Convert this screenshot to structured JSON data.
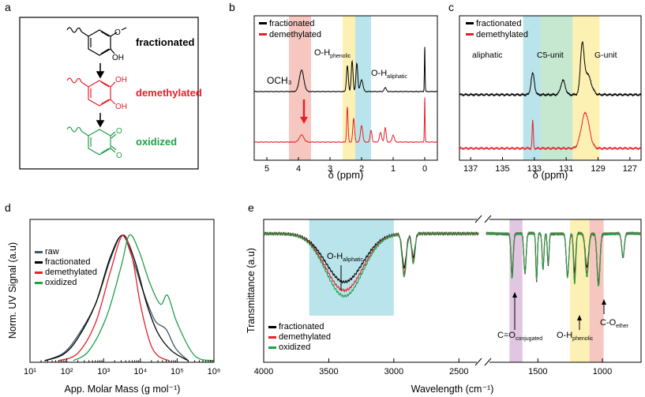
{
  "panels": {
    "a": {
      "letter": "a",
      "labels": {
        "fractionated": "fractionated",
        "demethylated": "demethylated",
        "oxidized": "oxidized"
      },
      "atoms": {
        "methoxy": "O",
        "oh1": "OH",
        "oh2": "OH",
        "oh3": "OH",
        "o1": "O",
        "o2": "O"
      },
      "colors": {
        "fractionated": "#000000",
        "demethylated": "#e8202a",
        "oxidized": "#1fa04a"
      }
    },
    "b": {
      "letter": "b",
      "legend": [
        "fractionated",
        "demethylated"
      ],
      "xlabel": "δ (ppm)",
      "ticks": [
        "5",
        "4",
        "3",
        "2",
        "1",
        "0"
      ],
      "ann_och3": "OCH₃",
      "ann_oh_phen_main": "O-H",
      "ann_oh_phen_sub": "phenolic",
      "ann_oh_ali_main": "O-H",
      "ann_oh_ali_sub": "aliphatic"
    },
    "c": {
      "letter": "c",
      "legend": [
        "fractionated",
        "demethylated"
      ],
      "xlabel": "δ (ppm)",
      "ticks": [
        "137",
        "135",
        "133",
        "131",
        "129",
        "127"
      ],
      "ann_aliphatic": "aliphatic",
      "ann_c5": "C5-unit",
      "ann_g": "G-unit"
    },
    "d": {
      "letter": "d"
    },
    "e": {
      "letter": "e",
      "ann_oh_ali_main": "O-H",
      "ann_oh_ali_sub": "aliphatic",
      "ann_co_main": "C=O",
      "ann_co_sub": "conjugated",
      "ann_ohp_main": "O-H",
      "ann_ohp_sub": "phenolic",
      "ann_coe_main": "C-O",
      "ann_coe_sub": "ether"
    }
  },
  "chart_data": [
    {
      "panel": "b",
      "type": "line",
      "title": "",
      "xlabel": "δ (ppm)",
      "ylabel": "",
      "xlim": [
        5.4,
        -0.4
      ],
      "x_ticks": [
        5,
        4,
        3,
        2,
        1,
        0
      ],
      "highlights": [
        {
          "from": 4.3,
          "to": 3.6,
          "color": "#f4b9b0"
        },
        {
          "from": 2.6,
          "to": 2.2,
          "color": "#fbeea0"
        },
        {
          "from": 2.2,
          "to": 1.7,
          "color": "#a8dde6"
        }
      ],
      "series": [
        {
          "name": "fractionated",
          "color": "#000000",
          "peaks": [
            [
              3.9,
              0.45,
              0.1
            ],
            [
              2.45,
              0.55,
              0.04
            ],
            [
              2.3,
              0.65,
              0.04
            ],
            [
              2.15,
              0.6,
              0.04
            ],
            [
              2.0,
              0.25,
              0.06
            ],
            [
              1.25,
              0.08,
              0.05
            ],
            [
              0.0,
              1.0,
              0.015
            ]
          ]
        },
        {
          "name": "demethylated",
          "color": "#e8202a",
          "peaks": [
            [
              3.9,
              0.15,
              0.1
            ],
            [
              2.45,
              0.75,
              0.03
            ],
            [
              2.25,
              0.5,
              0.04
            ],
            [
              2.0,
              0.35,
              0.05
            ],
            [
              1.7,
              0.25,
              0.04
            ],
            [
              1.4,
              0.2,
              0.05
            ],
            [
              1.25,
              0.3,
              0.04
            ],
            [
              1.0,
              0.15,
              0.05
            ],
            [
              0.0,
              1.0,
              0.015
            ]
          ]
        }
      ]
    },
    {
      "panel": "c",
      "type": "line",
      "title": "",
      "xlabel": "δ (ppm)",
      "ylabel": "",
      "xlim": [
        137.7,
        126.3
      ],
      "x_ticks": [
        137,
        135,
        133,
        131,
        129,
        127
      ],
      "highlights": [
        {
          "from": 133.7,
          "to": 132.6,
          "color": "#a8dde6"
        },
        {
          "from": 132.6,
          "to": 130.6,
          "color": "#b8e2c6"
        },
        {
          "from": 130.6,
          "to": 128.9,
          "color": "#fbeea0"
        }
      ],
      "series": [
        {
          "name": "fractionated",
          "color": "#000000",
          "peaks": [
            [
              133.1,
              0.45,
              0.15
            ],
            [
              131.2,
              0.3,
              0.2
            ],
            [
              130.0,
              0.9,
              0.15
            ],
            [
              129.7,
              0.45,
              0.35
            ]
          ]
        },
        {
          "name": "demethylated",
          "color": "#e8202a",
          "peaks": [
            [
              133.1,
              0.6,
              0.05
            ],
            [
              129.8,
              0.75,
              0.35
            ]
          ]
        }
      ]
    },
    {
      "panel": "d",
      "type": "line",
      "title": "",
      "xlabel": "App. Molar Mass (g mol⁻¹)",
      "ylabel": "Norm. UV Signal (a.u)",
      "xscale": "log",
      "xlim": [
        10,
        1000000
      ],
      "x_ticks": [
        "10¹",
        "10²",
        "10³",
        "10⁴",
        "10⁵",
        "10⁶"
      ],
      "series": [
        {
          "name": "raw",
          "color": "#3b5a63",
          "x": [
            25,
            80,
            200,
            600,
            1500,
            3200,
            6000,
            12000,
            25000,
            50000,
            90000,
            200000
          ],
          "y": [
            0.0,
            0.06,
            0.2,
            0.45,
            0.8,
            1.0,
            0.82,
            0.55,
            0.32,
            0.25,
            0.1,
            0.0
          ]
        },
        {
          "name": "fractionated",
          "color": "#000000",
          "x": [
            25,
            80,
            200,
            600,
            1500,
            3300,
            7000,
            15000,
            30000,
            70000,
            200000
          ],
          "y": [
            0.0,
            0.05,
            0.18,
            0.45,
            0.82,
            1.0,
            0.8,
            0.45,
            0.22,
            0.08,
            0.0
          ]
        },
        {
          "name": "demethylated",
          "color": "#e8202a",
          "x": [
            60,
            200,
            600,
            1500,
            3300,
            6000,
            10000,
            18000,
            30000,
            60000
          ],
          "y": [
            0.0,
            0.06,
            0.3,
            0.7,
            1.0,
            0.82,
            0.45,
            0.15,
            0.04,
            0.0
          ]
        },
        {
          "name": "oxidized",
          "color": "#1fa04a",
          "x": [
            150,
            400,
            1200,
            3000,
            5000,
            9000,
            18000,
            35000,
            55000,
            100000,
            300000,
            1000000
          ],
          "y": [
            0.0,
            0.08,
            0.35,
            0.75,
            1.0,
            0.88,
            0.62,
            0.45,
            0.52,
            0.3,
            0.04,
            0.0
          ]
        }
      ]
    },
    {
      "panel": "e",
      "type": "line",
      "title": "",
      "xlabel": "Wavelength (cm⁻¹)",
      "ylabel": "Transmittance (a.u)",
      "x_ticks": [
        "4000",
        "3500",
        "3000",
        "2500",
        "1500",
        "1000"
      ],
      "axis_break": [
        2350,
        1900
      ],
      "highlights": [
        {
          "from": 3650,
          "to": 3000,
          "color": "#a8dde6"
        },
        {
          "from": 1720,
          "to": 1620,
          "color": "#d9b8d9"
        },
        {
          "from": 1250,
          "to": 1100,
          "color": "#fbeea0"
        },
        {
          "from": 1100,
          "to": 990,
          "color": "#f4b9b0"
        }
      ],
      "series": [
        {
          "name": "fractionated",
          "color": "#000000",
          "depth_scale": 0.85
        },
        {
          "name": "demethylated",
          "color": "#e8202a",
          "depth_scale": 1.0
        },
        {
          "name": "oxidized",
          "color": "#1fa04a",
          "depth_scale": 1.1
        }
      ]
    }
  ]
}
